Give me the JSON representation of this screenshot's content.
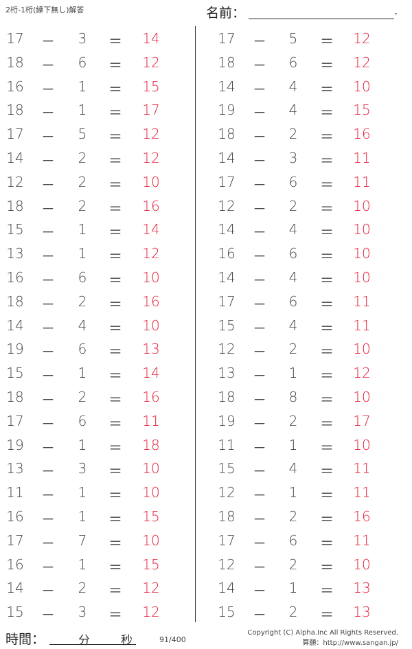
{
  "header": {
    "title": "2桁-1桁(繰下無し)解答",
    "name_label": "名前：",
    "name_end": "."
  },
  "operators": {
    "minus": "－",
    "equals": "＝"
  },
  "problems_left": [
    [
      "17",
      "3",
      "14"
    ],
    [
      "18",
      "6",
      "12"
    ],
    [
      "16",
      "1",
      "15"
    ],
    [
      "18",
      "1",
      "17"
    ],
    [
      "17",
      "5",
      "12"
    ],
    [
      "14",
      "2",
      "12"
    ],
    [
      "12",
      "2",
      "10"
    ],
    [
      "18",
      "2",
      "16"
    ],
    [
      "15",
      "1",
      "14"
    ],
    [
      "13",
      "1",
      "12"
    ],
    [
      "16",
      "6",
      "10"
    ],
    [
      "18",
      "2",
      "16"
    ],
    [
      "14",
      "4",
      "10"
    ],
    [
      "19",
      "6",
      "13"
    ],
    [
      "15",
      "1",
      "14"
    ],
    [
      "18",
      "2",
      "16"
    ],
    [
      "17",
      "6",
      "11"
    ],
    [
      "19",
      "1",
      "18"
    ],
    [
      "13",
      "3",
      "10"
    ],
    [
      "11",
      "1",
      "10"
    ],
    [
      "16",
      "1",
      "15"
    ],
    [
      "17",
      "7",
      "10"
    ],
    [
      "16",
      "1",
      "15"
    ],
    [
      "14",
      "2",
      "12"
    ],
    [
      "15",
      "3",
      "12"
    ]
  ],
  "problems_right": [
    [
      "17",
      "5",
      "12"
    ],
    [
      "18",
      "6",
      "12"
    ],
    [
      "14",
      "4",
      "10"
    ],
    [
      "19",
      "4",
      "15"
    ],
    [
      "18",
      "2",
      "16"
    ],
    [
      "14",
      "3",
      "11"
    ],
    [
      "17",
      "6",
      "11"
    ],
    [
      "12",
      "2",
      "10"
    ],
    [
      "14",
      "4",
      "10"
    ],
    [
      "16",
      "6",
      "10"
    ],
    [
      "14",
      "4",
      "10"
    ],
    [
      "17",
      "6",
      "11"
    ],
    [
      "15",
      "4",
      "11"
    ],
    [
      "12",
      "2",
      "10"
    ],
    [
      "13",
      "1",
      "12"
    ],
    [
      "18",
      "8",
      "10"
    ],
    [
      "19",
      "2",
      "17"
    ],
    [
      "11",
      "1",
      "10"
    ],
    [
      "15",
      "4",
      "11"
    ],
    [
      "12",
      "1",
      "11"
    ],
    [
      "18",
      "2",
      "16"
    ],
    [
      "17",
      "6",
      "11"
    ],
    [
      "12",
      "2",
      "10"
    ],
    [
      "14",
      "1",
      "13"
    ],
    [
      "15",
      "2",
      "13"
    ]
  ],
  "footer": {
    "time_label": "時間：",
    "minutes": "分",
    "seconds": "秒",
    "page": "91/400",
    "copyright": "Copyright (C) Alpha.Inc All Rights Reserved.",
    "site": "算願：http://www.sangan.jp/"
  },
  "colors": {
    "answer": "#e8203a"
  }
}
